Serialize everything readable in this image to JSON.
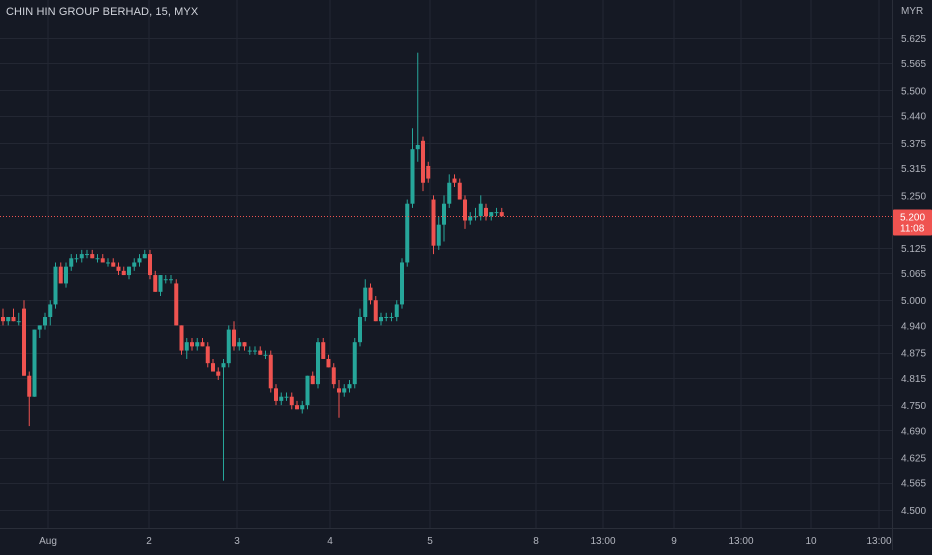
{
  "chart_data": {
    "type": "candlestick",
    "title": "CHIN HIN GROUP BERHAD, 15, MYX",
    "currency": "MYR",
    "last_price": "5.200",
    "countdown": "11:08",
    "ylim": [
      4.45,
      5.69
    ],
    "y_ticks": [
      "5.625",
      "5.565",
      "5.500",
      "5.440",
      "5.375",
      "5.315",
      "5.250",
      "5.200",
      "5.125",
      "5.065",
      "5.000",
      "4.940",
      "4.875",
      "4.815",
      "4.750",
      "4.690",
      "4.625",
      "4.565",
      "4.500"
    ],
    "x_ticks": [
      "Aug",
      "2",
      "3",
      "4",
      "5",
      "8",
      "13:00",
      "9",
      "13:00",
      "10",
      "13:00"
    ],
    "colors": {
      "up": "#26a69a",
      "down": "#ef5350",
      "background": "#151924",
      "grid": "#232733",
      "text": "#b2b5be"
    },
    "candles": [
      [
        4.96,
        4.98,
        4.94,
        4.95
      ],
      [
        4.95,
        4.96,
        4.94,
        4.96
      ],
      [
        4.96,
        4.98,
        4.95,
        4.95
      ],
      [
        4.95,
        4.97,
        4.94,
        4.95
      ],
      [
        4.98,
        5.0,
        4.82,
        4.82
      ],
      [
        4.82,
        4.83,
        4.7,
        4.77
      ],
      [
        4.77,
        4.93,
        4.77,
        4.93
      ],
      [
        4.93,
        4.94,
        4.91,
        4.94
      ],
      [
        4.94,
        4.97,
        4.93,
        4.96
      ],
      [
        4.96,
        5.0,
        4.94,
        4.99
      ],
      [
        4.99,
        5.09,
        4.98,
        5.08
      ],
      [
        5.08,
        5.09,
        5.04,
        5.04
      ],
      [
        5.04,
        5.09,
        5.03,
        5.08
      ],
      [
        5.08,
        5.11,
        5.07,
        5.1
      ],
      [
        5.1,
        5.11,
        5.09,
        5.1
      ],
      [
        5.1,
        5.12,
        5.09,
        5.11
      ],
      [
        5.11,
        5.12,
        5.1,
        5.11
      ],
      [
        5.11,
        5.12,
        5.1,
        5.1
      ],
      [
        5.1,
        5.11,
        5.09,
        5.1
      ],
      [
        5.1,
        5.11,
        5.09,
        5.09
      ],
      [
        5.09,
        5.1,
        5.08,
        5.09
      ],
      [
        5.09,
        5.1,
        5.08,
        5.08
      ],
      [
        5.08,
        5.09,
        5.06,
        5.07
      ],
      [
        5.07,
        5.08,
        5.06,
        5.06
      ],
      [
        5.06,
        5.08,
        5.05,
        5.08
      ],
      [
        5.08,
        5.1,
        5.07,
        5.09
      ],
      [
        5.09,
        5.11,
        5.08,
        5.1
      ],
      [
        5.1,
        5.12,
        5.1,
        5.11
      ],
      [
        5.11,
        5.12,
        5.05,
        5.06
      ],
      [
        5.06,
        5.07,
        5.02,
        5.02
      ],
      [
        5.02,
        5.06,
        5.01,
        5.06
      ],
      [
        5.05,
        5.06,
        5.04,
        5.05
      ],
      [
        5.05,
        5.06,
        5.04,
        5.05
      ],
      [
        5.04,
        5.05,
        4.94,
        4.94
      ],
      [
        4.94,
        4.94,
        4.87,
        4.88
      ],
      [
        4.88,
        4.91,
        4.86,
        4.9
      ],
      [
        4.9,
        4.91,
        4.88,
        4.89
      ],
      [
        4.89,
        4.91,
        4.88,
        4.9
      ],
      [
        4.9,
        4.91,
        4.89,
        4.89
      ],
      [
        4.89,
        4.9,
        4.84,
        4.85
      ],
      [
        4.85,
        4.86,
        4.83,
        4.83
      ],
      [
        4.83,
        4.84,
        4.81,
        4.82
      ],
      [
        4.84,
        4.86,
        4.57,
        4.85
      ],
      [
        4.85,
        4.94,
        4.84,
        4.93
      ],
      [
        4.93,
        4.95,
        4.88,
        4.89
      ],
      [
        4.89,
        4.91,
        4.88,
        4.9
      ],
      [
        4.9,
        4.9,
        4.88,
        4.89
      ],
      [
        4.88,
        4.89,
        4.87,
        4.88
      ],
      [
        4.88,
        4.89,
        4.87,
        4.88
      ],
      [
        4.88,
        4.89,
        4.87,
        4.87
      ],
      [
        4.87,
        4.88,
        4.86,
        4.87
      ],
      [
        4.87,
        4.88,
        4.78,
        4.79
      ],
      [
        4.79,
        4.8,
        4.75,
        4.76
      ],
      [
        4.76,
        4.78,
        4.75,
        4.77
      ],
      [
        4.77,
        4.78,
        4.76,
        4.77
      ],
      [
        4.77,
        4.78,
        4.74,
        4.75
      ],
      [
        4.75,
        4.76,
        4.74,
        4.74
      ],
      [
        4.74,
        4.76,
        4.73,
        4.75
      ],
      [
        4.75,
        4.82,
        4.74,
        4.82
      ],
      [
        4.82,
        4.83,
        4.8,
        4.8
      ],
      [
        4.8,
        4.91,
        4.79,
        4.9
      ],
      [
        4.9,
        4.91,
        4.86,
        4.86
      ],
      [
        4.86,
        4.87,
        4.84,
        4.84
      ],
      [
        4.84,
        4.85,
        4.79,
        4.8
      ],
      [
        4.79,
        4.81,
        4.72,
        4.78
      ],
      [
        4.78,
        4.8,
        4.77,
        4.79
      ],
      [
        4.79,
        4.81,
        4.78,
        4.8
      ],
      [
        4.8,
        4.91,
        4.79,
        4.9
      ],
      [
        4.9,
        4.98,
        4.89,
        4.96
      ],
      [
        4.96,
        5.05,
        4.95,
        5.03
      ],
      [
        5.03,
        5.04,
        4.99,
        5.0
      ],
      [
        5.0,
        5.01,
        4.95,
        4.95
      ],
      [
        4.95,
        4.97,
        4.94,
        4.96
      ],
      [
        4.96,
        4.97,
        4.95,
        4.96
      ],
      [
        4.96,
        4.97,
        4.95,
        4.96
      ],
      [
        4.96,
        5.0,
        4.95,
        4.99
      ],
      [
        4.99,
        5.1,
        4.98,
        5.09
      ],
      [
        5.09,
        5.24,
        5.08,
        5.23
      ],
      [
        5.23,
        5.41,
        5.22,
        5.36
      ],
      [
        5.36,
        5.59,
        5.33,
        5.37
      ],
      [
        5.38,
        5.39,
        5.26,
        5.28
      ],
      [
        5.32,
        5.33,
        5.28,
        5.29
      ],
      [
        5.24,
        5.25,
        5.11,
        5.13
      ],
      [
        5.13,
        5.2,
        5.12,
        5.18
      ],
      [
        5.18,
        5.25,
        5.14,
        5.23
      ],
      [
        5.23,
        5.3,
        5.22,
        5.28
      ],
      [
        5.29,
        5.3,
        5.27,
        5.28
      ],
      [
        5.28,
        5.29,
        5.24,
        5.24
      ],
      [
        5.24,
        5.25,
        5.17,
        5.19
      ],
      [
        5.19,
        5.21,
        5.18,
        5.2
      ],
      [
        5.2,
        5.22,
        5.19,
        5.2
      ],
      [
        5.2,
        5.25,
        5.19,
        5.23
      ],
      [
        5.22,
        5.23,
        5.19,
        5.2
      ],
      [
        5.2,
        5.21,
        5.19,
        5.21
      ],
      [
        5.21,
        5.22,
        5.2,
        5.21
      ],
      [
        5.21,
        5.22,
        5.2,
        5.2
      ]
    ]
  }
}
